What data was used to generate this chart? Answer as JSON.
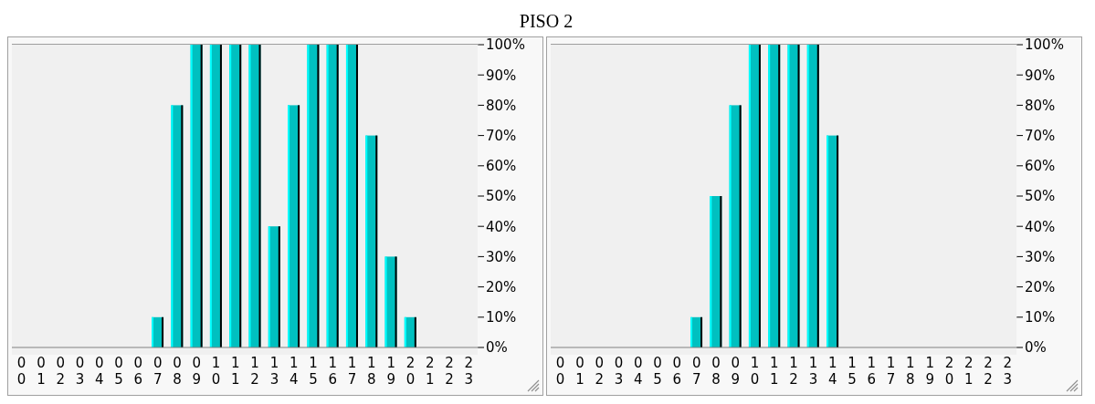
{
  "chart_data": [
    {
      "type": "bar",
      "title": "PISO 2",
      "categories": [
        "00",
        "01",
        "02",
        "03",
        "04",
        "05",
        "06",
        "07",
        "08",
        "09",
        "10",
        "11",
        "12",
        "13",
        "14",
        "15",
        "16",
        "17",
        "18",
        "19",
        "20",
        "21",
        "22",
        "23"
      ],
      "values": [
        0,
        0,
        0,
        0,
        0,
        0,
        0,
        10,
        80,
        100,
        100,
        100,
        100,
        40,
        80,
        100,
        100,
        100,
        70,
        30,
        10,
        0,
        0,
        0
      ],
      "color": "#00c0c0",
      "ylim": [
        0,
        100
      ],
      "yticks": [
        {
          "value": 0,
          "label": "0%"
        },
        {
          "value": 10,
          "label": "10%"
        },
        {
          "value": 20,
          "label": "20%"
        },
        {
          "value": 30,
          "label": "30%"
        },
        {
          "value": 40,
          "label": "40%"
        },
        {
          "value": 50,
          "label": "50%"
        },
        {
          "value": 60,
          "label": "60%"
        },
        {
          "value": 70,
          "label": "70%"
        },
        {
          "value": 80,
          "label": "80%"
        },
        {
          "value": 90,
          "label": "90%"
        },
        {
          "value": 100,
          "label": "100%"
        }
      ],
      "grid": "y",
      "legend": false
    },
    {
      "type": "bar",
      "categories": [
        "00",
        "01",
        "02",
        "03",
        "04",
        "05",
        "06",
        "07",
        "08",
        "09",
        "10",
        "11",
        "12",
        "13",
        "14",
        "15",
        "16",
        "17",
        "18",
        "19",
        "20",
        "21",
        "22",
        "23"
      ],
      "values": [
        0,
        0,
        0,
        0,
        0,
        0,
        0,
        10,
        50,
        80,
        100,
        100,
        100,
        100,
        70,
        0,
        0,
        0,
        0,
        0,
        0,
        0,
        0,
        0
      ],
      "color": "#00c0c0",
      "ylim": [
        0,
        100
      ],
      "yticks": [
        {
          "value": 0,
          "label": "0%"
        },
        {
          "value": 10,
          "label": "10%"
        },
        {
          "value": 20,
          "label": "20%"
        },
        {
          "value": 30,
          "label": "30%"
        },
        {
          "value": 40,
          "label": "40%"
        },
        {
          "value": 50,
          "label": "50%"
        },
        {
          "value": 60,
          "label": "60%"
        },
        {
          "value": 70,
          "label": "70%"
        },
        {
          "value": 80,
          "label": "80%"
        },
        {
          "value": 90,
          "label": "90%"
        },
        {
          "value": 100,
          "label": "100%"
        }
      ],
      "grid": "y",
      "legend": false
    }
  ]
}
